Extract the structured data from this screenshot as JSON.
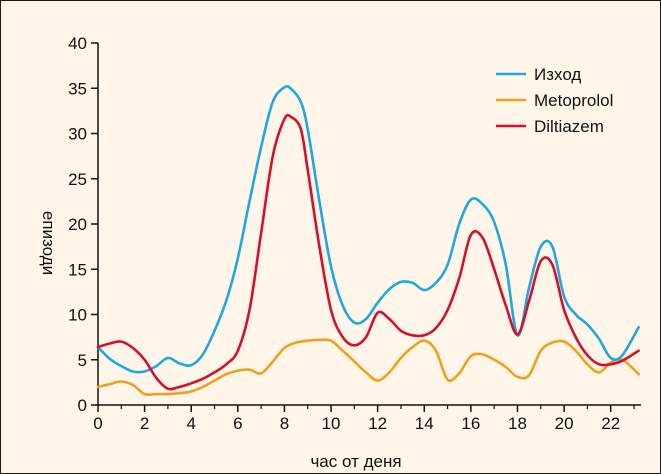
{
  "chart_data": {
    "type": "line",
    "title": "",
    "xlabel": "час от деня",
    "ylabel": "епизоди",
    "xlim": [
      0,
      23.3
    ],
    "ylim": [
      0,
      40
    ],
    "xticks": [
      0,
      2,
      4,
      6,
      8,
      10,
      12,
      14,
      16,
      18,
      20,
      22
    ],
    "yticks": [
      0,
      5,
      10,
      15,
      20,
      25,
      30,
      35,
      40
    ],
    "grid": false,
    "legend_position": "top-right",
    "series": [
      {
        "name": "Изход",
        "color": "#1fa8e0",
        "x": [
          0,
          0.5,
          1,
          1.5,
          2,
          2.5,
          3,
          3.5,
          4,
          4.5,
          5,
          5.5,
          6,
          6.5,
          7,
          7.5,
          8,
          8.3,
          8.7,
          9,
          9.5,
          10,
          10.5,
          11,
          11.5,
          12,
          12.5,
          13,
          13.5,
          14,
          14.5,
          15,
          15.5,
          16,
          16.5,
          17,
          17.5,
          18,
          18.5,
          19,
          19.5,
          20,
          20.5,
          21,
          21.5,
          22,
          22.5,
          23.2
        ],
        "y": [
          6.4,
          5.1,
          4.3,
          3.7,
          3.7,
          4.3,
          5.2,
          4.6,
          4.4,
          5.6,
          8.2,
          11.5,
          16.2,
          22.5,
          28.5,
          33.5,
          35.1,
          34.9,
          33.5,
          30.5,
          22.5,
          15.3,
          11.0,
          9.1,
          9.5,
          11.3,
          12.8,
          13.6,
          13.5,
          12.7,
          13.5,
          15.5,
          20.0,
          22.7,
          22.2,
          20.2,
          15.5,
          7.7,
          13.0,
          17.5,
          17.5,
          12.0,
          10.0,
          8.9,
          7.3,
          5.2,
          5.5,
          8.6
        ]
      },
      {
        "name": "Metoprolol",
        "color": "#f0a01c",
        "x": [
          0,
          0.5,
          1,
          1.5,
          2,
          2.5,
          3,
          3.5,
          4,
          4.5,
          5,
          5.5,
          6,
          6.5,
          7,
          7.5,
          8,
          8.5,
          9,
          9.5,
          10,
          10.5,
          11,
          11.5,
          12,
          12.5,
          13,
          13.5,
          14,
          14.5,
          15,
          15.5,
          16,
          16.5,
          17,
          17.5,
          18,
          18.5,
          19,
          19.5,
          20,
          20.5,
          21,
          21.5,
          22,
          22.5,
          23.2
        ],
        "y": [
          2.0,
          2.3,
          2.6,
          2.2,
          1.2,
          1.2,
          1.2,
          1.3,
          1.5,
          2.0,
          2.7,
          3.4,
          3.8,
          3.9,
          3.5,
          4.8,
          6.3,
          6.9,
          7.1,
          7.2,
          7.1,
          6.0,
          4.8,
          3.6,
          2.7,
          3.6,
          5.2,
          6.4,
          7.1,
          6.0,
          2.8,
          3.5,
          5.4,
          5.6,
          5.0,
          4.2,
          3.1,
          3.3,
          6.0,
          6.9,
          7.0,
          6.0,
          4.5,
          3.6,
          4.7,
          5.0,
          3.4
        ]
      },
      {
        "name": "Diltiazem",
        "color": "#d4102a",
        "x": [
          0,
          0.5,
          1,
          1.5,
          2,
          2.5,
          3,
          3.5,
          4,
          4.5,
          5,
          5.5,
          6,
          6.5,
          7,
          7.5,
          8,
          8.3,
          8.7,
          9,
          9.5,
          10,
          10.5,
          11,
          11.5,
          12,
          12.5,
          13,
          13.5,
          14,
          14.5,
          15,
          15.5,
          16,
          16.5,
          17,
          17.5,
          18,
          18.5,
          19,
          19.5,
          20,
          20.5,
          21,
          21.5,
          22,
          22.5,
          23.2
        ],
        "y": [
          6.4,
          6.8,
          7.0,
          6.3,
          5.0,
          3.0,
          1.8,
          2.0,
          2.4,
          2.9,
          3.6,
          4.5,
          6.0,
          10.5,
          19.0,
          27.5,
          31.6,
          31.8,
          30.5,
          26.0,
          17.5,
          10.5,
          7.5,
          6.6,
          7.5,
          10.2,
          9.5,
          8.2,
          7.7,
          7.7,
          8.5,
          10.5,
          14.0,
          18.8,
          18.5,
          15.0,
          11.0,
          7.8,
          11.5,
          15.9,
          15.5,
          10.5,
          7.5,
          5.5,
          4.5,
          4.5,
          4.9,
          6.0
        ]
      }
    ]
  }
}
